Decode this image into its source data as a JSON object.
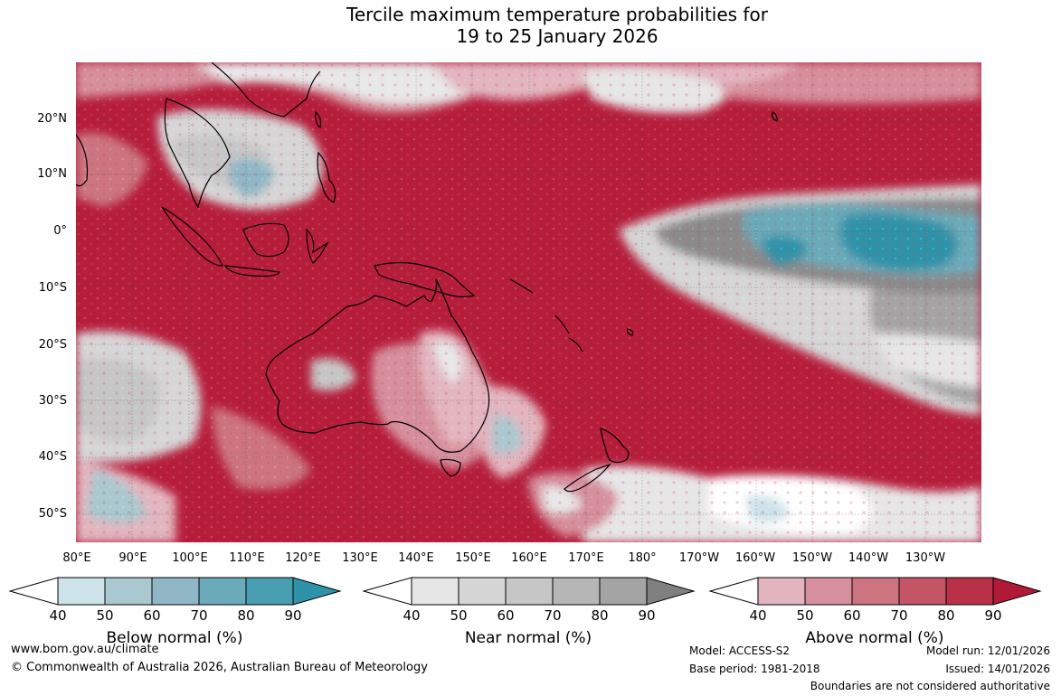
{
  "title": {
    "line1": "Tercile maximum temperature probabilities for",
    "line2": "19 to 25 January 2026"
  },
  "map": {
    "region": "Australia and western Pacific"
  },
  "lat_labels": [
    "20°N",
    "10°N",
    "0°",
    "10°S",
    "20°S",
    "30°S",
    "40°S",
    "50°S"
  ],
  "lon_labels": [
    "80°E",
    "90°E",
    "100°E",
    "110°E",
    "120°E",
    "130°E",
    "140°E",
    "150°E",
    "160°E",
    "170°E",
    "180°",
    "170°W",
    "160°W",
    "150°W",
    "140°W",
    "130°W"
  ],
  "colorbars": [
    {
      "label": "Below normal (%)",
      "ticks": [
        "40",
        "50",
        "60",
        "70",
        "80",
        "90"
      ],
      "colors": [
        "#ffffff",
        "#cde3e9",
        "#aac8cf",
        "#8fb7c6",
        "#6aaab9",
        "#499fb1",
        "#2e93a9"
      ]
    },
    {
      "label": "Near normal (%)",
      "ticks": [
        "40",
        "50",
        "60",
        "70",
        "80",
        "90"
      ],
      "colors": [
        "#ffffff",
        "#e6e6e6",
        "#d6d6d6",
        "#c6c6c6",
        "#b6b6b6",
        "#a4a4a4",
        "#808080"
      ]
    },
    {
      "label": "Above normal (%)",
      "ticks": [
        "40",
        "50",
        "60",
        "70",
        "80",
        "90"
      ],
      "colors": [
        "#ffffff",
        "#e2b5bf",
        "#d68f9c",
        "#cc7480",
        "#c45567",
        "#b93148",
        "#b01a37"
      ]
    }
  ],
  "footer": {
    "website": "www.bom.gov.au/climate",
    "copyright": "© Commonwealth of Australia 2026, Australian Bureau of Meteorology",
    "model": "Model: ACCESS-S2",
    "base_period": "Base period: 1981-2018",
    "model_run": "Model run: 12/01/2026",
    "issued": "Issued: 14/01/2026",
    "disclaimer": "Boundaries are not considered authoritative"
  }
}
